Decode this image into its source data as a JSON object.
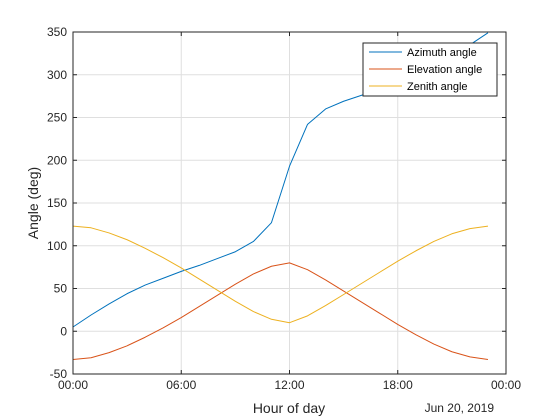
{
  "chart_data": {
    "type": "line",
    "title": "",
    "xlabel": "Hour of day",
    "ylabel": "Angle (deg)",
    "date_label": "Jun 20, 2019",
    "x_tick_labels": [
      "00:00",
      "06:00",
      "12:00",
      "18:00",
      "00:00"
    ],
    "x_tick_hours": [
      0,
      6,
      12,
      18,
      24
    ],
    "xlim_hours": [
      0,
      24
    ],
    "ylim": [
      -50,
      350
    ],
    "y_ticks": [
      -50,
      0,
      50,
      100,
      150,
      200,
      250,
      300,
      350
    ],
    "grid": true,
    "legend_position": "top-right",
    "x_hours": [
      0,
      1,
      2,
      3,
      4,
      5,
      6,
      7,
      8,
      9,
      10,
      11,
      12,
      13,
      14,
      15,
      16,
      17,
      18,
      19,
      20,
      21,
      22,
      23
    ],
    "series": [
      {
        "name": "Azimuth angle",
        "color": "#0072BD",
        "values": [
          5,
          19,
          32,
          44,
          54,
          62,
          70,
          77,
          85,
          93,
          105,
          127,
          193,
          242,
          260,
          269,
          276,
          283,
          291,
          300,
          310,
          322,
          335,
          349
        ]
      },
      {
        "name": "Elevation angle",
        "color": "#D95319",
        "values": [
          -33,
          -31,
          -25,
          -17,
          -7,
          4,
          16,
          29,
          42,
          55,
          67,
          76,
          80,
          72,
          60,
          47,
          34,
          21,
          8,
          -4,
          -15,
          -24,
          -30,
          -33
        ]
      },
      {
        "name": "Zenith angle",
        "color": "#EDB120",
        "values": [
          123,
          121,
          115,
          107,
          97,
          86,
          74,
          61,
          48,
          35,
          23,
          14,
          10,
          18,
          30,
          43,
          56,
          69,
          82,
          94,
          105,
          114,
          120,
          123
        ]
      }
    ]
  }
}
